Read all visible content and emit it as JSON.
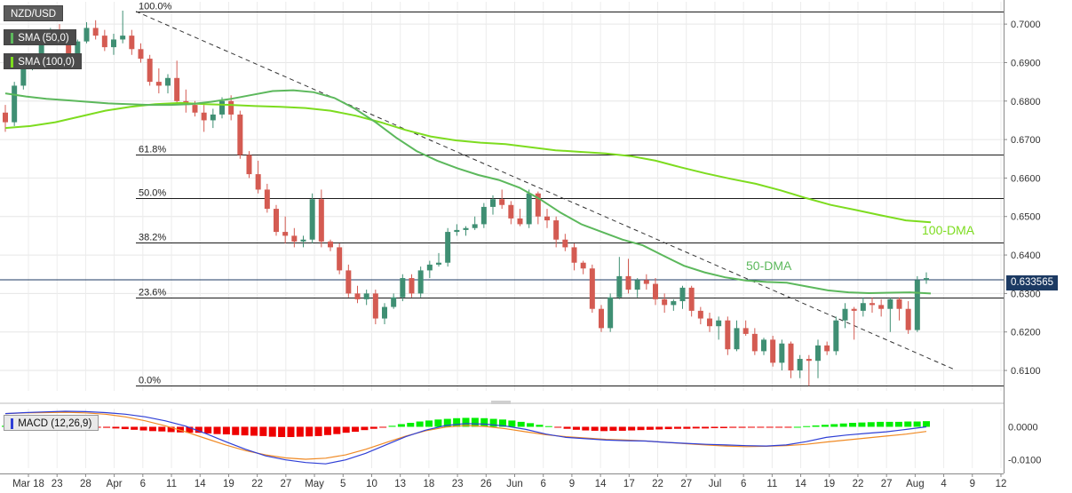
{
  "instrument": {
    "symbol": "NZD/USD"
  },
  "indicators": {
    "sma50": {
      "label": "SMA (50,0)",
      "color": "#5cb85c"
    },
    "sma100": {
      "label": "SMA (100,0)",
      "color": "#7ddc1f"
    },
    "macd": {
      "label": "MACD (12,26,9)",
      "macd_color": "#2f3fd6",
      "signal_color": "#f08a24"
    }
  },
  "last_price": "0.633565",
  "colors": {
    "up": "#3f8f73",
    "down": "#d45b52",
    "fib": "#1b1b1b",
    "hist_pos": "#00ee00",
    "hist_neg": "#ee0000",
    "price_line": "#1c3a63"
  },
  "chart_data": {
    "type": "candlestick",
    "x_axis_labels": [
      "Mar 18",
      "23",
      "28",
      "Apr",
      "6",
      "11",
      "14",
      "19",
      "22",
      "27",
      "May",
      "5",
      "10",
      "13",
      "18",
      "23",
      "26",
      "Jun",
      "6",
      "9",
      "14",
      "17",
      "22",
      "27",
      "Jul",
      "6",
      "11",
      "14",
      "19",
      "22",
      "27",
      "Aug",
      "4",
      "9",
      "12"
    ],
    "y_axis_labels": [
      "0.7000",
      "0.6900",
      "0.6800",
      "0.6700",
      "0.6600",
      "0.6500",
      "0.6400",
      "0.6300",
      "0.6200",
      "0.6100"
    ],
    "ylim": [
      0.6047,
      0.7058
    ],
    "fibonacci": [
      {
        "label": "100.0%",
        "value": 0.7033
      },
      {
        "label": "61.8%",
        "value": 0.6661
      },
      {
        "label": "50.0%",
        "value": 0.6547
      },
      {
        "label": "38.2%",
        "value": 0.6432
      },
      {
        "label": "23.6%",
        "value": 0.629
      },
      {
        "label": "0.0%",
        "value": 0.606
      }
    ],
    "trendline": {
      "from": 0.7033,
      "to": 0.6102,
      "style": "dashed"
    },
    "annotations": [
      {
        "text": "100-DMA",
        "color": "#7ddc1f"
      },
      {
        "text": "50-DMA",
        "color": "#5cb85c"
      }
    ],
    "ohlc": [
      [
        0.677,
        0.679,
        0.672,
        0.6745
      ],
      [
        0.6745,
        0.685,
        0.6735,
        0.684
      ],
      [
        0.684,
        0.6905,
        0.683,
        0.6895
      ],
      [
        0.6895,
        0.692,
        0.688,
        0.6905
      ],
      [
        0.6905,
        0.6975,
        0.6885,
        0.696
      ],
      [
        0.696,
        0.699,
        0.695,
        0.6975
      ],
      [
        0.6975,
        0.7,
        0.696,
        0.697
      ],
      [
        0.697,
        0.6985,
        0.69,
        0.6915
      ],
      [
        0.6915,
        0.696,
        0.6905,
        0.6955
      ],
      [
        0.6955,
        0.7005,
        0.695,
        0.699
      ],
      [
        0.699,
        0.701,
        0.696,
        0.697
      ],
      [
        0.697,
        0.6985,
        0.693,
        0.694
      ],
      [
        0.694,
        0.6975,
        0.692,
        0.696
      ],
      [
        0.696,
        0.7035,
        0.695,
        0.697
      ],
      [
        0.697,
        0.6985,
        0.692,
        0.6935
      ],
      [
        0.6935,
        0.695,
        0.69,
        0.691
      ],
      [
        0.691,
        0.692,
        0.684,
        0.685
      ],
      [
        0.685,
        0.6885,
        0.682,
        0.684
      ],
      [
        0.684,
        0.687,
        0.682,
        0.686
      ],
      [
        0.686,
        0.6905,
        0.679,
        0.68
      ],
      [
        0.68,
        0.683,
        0.677,
        0.679
      ],
      [
        0.679,
        0.68,
        0.676,
        0.677
      ],
      [
        0.677,
        0.679,
        0.672,
        0.675
      ],
      [
        0.675,
        0.678,
        0.673,
        0.6765
      ],
      [
        0.6765,
        0.681,
        0.6755,
        0.68
      ],
      [
        0.68,
        0.6815,
        0.675,
        0.6765
      ],
      [
        0.6765,
        0.6775,
        0.665,
        0.666
      ],
      [
        0.666,
        0.667,
        0.66,
        0.661
      ],
      [
        0.661,
        0.6645,
        0.656,
        0.657
      ],
      [
        0.657,
        0.6585,
        0.651,
        0.652
      ],
      [
        0.652,
        0.653,
        0.645,
        0.646
      ],
      [
        0.646,
        0.65,
        0.643,
        0.645
      ],
      [
        0.645,
        0.647,
        0.642,
        0.6435
      ],
      [
        0.6435,
        0.645,
        0.642,
        0.644
      ],
      [
        0.644,
        0.656,
        0.643,
        0.6545
      ],
      [
        0.6545,
        0.657,
        0.642,
        0.6435
      ],
      [
        0.6435,
        0.644,
        0.641,
        0.642
      ],
      [
        0.642,
        0.643,
        0.635,
        0.636
      ],
      [
        0.636,
        0.6375,
        0.629,
        0.63
      ],
      [
        0.63,
        0.632,
        0.6275,
        0.6285
      ],
      [
        0.6285,
        0.631,
        0.627,
        0.63
      ],
      [
        0.63,
        0.631,
        0.622,
        0.6235
      ],
      [
        0.6235,
        0.6275,
        0.622,
        0.6265
      ],
      [
        0.6265,
        0.63,
        0.626,
        0.629
      ],
      [
        0.629,
        0.635,
        0.628,
        0.634
      ],
      [
        0.634,
        0.635,
        0.629,
        0.63
      ],
      [
        0.63,
        0.637,
        0.629,
        0.636
      ],
      [
        0.636,
        0.6385,
        0.634,
        0.6375
      ],
      [
        0.6375,
        0.6405,
        0.637,
        0.638
      ],
      [
        0.638,
        0.647,
        0.637,
        0.646
      ],
      [
        0.646,
        0.648,
        0.645,
        0.6465
      ],
      [
        0.6465,
        0.6475,
        0.645,
        0.647
      ],
      [
        0.647,
        0.65,
        0.6465,
        0.648
      ],
      [
        0.648,
        0.6535,
        0.647,
        0.6525
      ],
      [
        0.6525,
        0.6555,
        0.6505,
        0.6545
      ],
      [
        0.6545,
        0.657,
        0.652,
        0.653
      ],
      [
        0.653,
        0.654,
        0.648,
        0.6495
      ],
      [
        0.6495,
        0.652,
        0.6475,
        0.648
      ],
      [
        0.648,
        0.657,
        0.647,
        0.656
      ],
      [
        0.656,
        0.6565,
        0.648,
        0.65
      ],
      [
        0.65,
        0.652,
        0.647,
        0.649
      ],
      [
        0.649,
        0.65,
        0.642,
        0.644
      ],
      [
        0.644,
        0.6455,
        0.641,
        0.642
      ],
      [
        0.642,
        0.643,
        0.636,
        0.638
      ],
      [
        0.638,
        0.6385,
        0.635,
        0.6365
      ],
      [
        0.6365,
        0.6375,
        0.625,
        0.626
      ],
      [
        0.626,
        0.627,
        0.62,
        0.621
      ],
      [
        0.621,
        0.63,
        0.62,
        0.629
      ],
      [
        0.629,
        0.6395,
        0.6285,
        0.6345
      ],
      [
        0.6345,
        0.639,
        0.63,
        0.631
      ],
      [
        0.631,
        0.634,
        0.629,
        0.6335
      ],
      [
        0.6335,
        0.635,
        0.631,
        0.6325
      ],
      [
        0.6325,
        0.634,
        0.627,
        0.6285
      ],
      [
        0.6285,
        0.63,
        0.625,
        0.627
      ],
      [
        0.627,
        0.6285,
        0.6255,
        0.628
      ],
      [
        0.628,
        0.632,
        0.626,
        0.6315
      ],
      [
        0.6315,
        0.632,
        0.624,
        0.6255
      ],
      [
        0.6255,
        0.6265,
        0.622,
        0.6235
      ],
      [
        0.6235,
        0.625,
        0.62,
        0.6215
      ],
      [
        0.6215,
        0.624,
        0.618,
        0.623
      ],
      [
        0.623,
        0.624,
        0.614,
        0.6155
      ],
      [
        0.6155,
        0.623,
        0.615,
        0.621
      ],
      [
        0.621,
        0.623,
        0.619,
        0.6195
      ],
      [
        0.6195,
        0.621,
        0.614,
        0.615
      ],
      [
        0.615,
        0.6185,
        0.614,
        0.618
      ],
      [
        0.618,
        0.619,
        0.611,
        0.612
      ],
      [
        0.612,
        0.618,
        0.61,
        0.617
      ],
      [
        0.617,
        0.6175,
        0.608,
        0.61
      ],
      [
        0.61,
        0.614,
        0.608,
        0.613
      ],
      [
        0.613,
        0.614,
        0.606,
        0.6125
      ],
      [
        0.6125,
        0.618,
        0.608,
        0.6165
      ],
      [
        0.6165,
        0.6175,
        0.614,
        0.615
      ],
      [
        0.615,
        0.624,
        0.614,
        0.623
      ],
      [
        0.623,
        0.6275,
        0.621,
        0.626
      ],
      [
        0.626,
        0.6265,
        0.618,
        0.6255
      ],
      [
        0.6255,
        0.629,
        0.624,
        0.6275
      ],
      [
        0.6275,
        0.629,
        0.625,
        0.627
      ],
      [
        0.627,
        0.6285,
        0.624,
        0.626
      ],
      [
        0.626,
        0.629,
        0.62,
        0.6285
      ],
      [
        0.6285,
        0.629,
        0.623,
        0.626
      ],
      [
        0.626,
        0.628,
        0.6195,
        0.6205
      ],
      [
        0.6205,
        0.6345,
        0.62,
        0.6335
      ],
      [
        0.6335,
        0.6355,
        0.6325,
        0.634
      ]
    ],
    "sma50": [
      0.682,
      0.6812,
      0.6806,
      0.6802,
      0.6798,
      0.6794,
      0.6792,
      0.679,
      0.679,
      0.6792,
      0.6798,
      0.6806,
      0.6816,
      0.6826,
      0.6828,
      0.6823,
      0.6808,
      0.678,
      0.6745,
      0.6705,
      0.667,
      0.6645,
      0.6625,
      0.6608,
      0.6595,
      0.6575,
      0.6545,
      0.651,
      0.648,
      0.646,
      0.644,
      0.6425,
      0.6398,
      0.6372,
      0.6355,
      0.6342,
      0.6334,
      0.633,
      0.6328,
      0.6318,
      0.6308,
      0.6303,
      0.6301,
      0.6302,
      0.6303,
      0.63
    ],
    "sma100": [
      0.673,
      0.6735,
      0.6745,
      0.676,
      0.6775,
      0.6785,
      0.6792,
      0.6795,
      0.6792,
      0.679,
      0.6787,
      0.6785,
      0.6782,
      0.6775,
      0.6762,
      0.6745,
      0.6725,
      0.6708,
      0.6698,
      0.6692,
      0.6688,
      0.668,
      0.6672,
      0.6668,
      0.6664,
      0.6657,
      0.6645,
      0.6628,
      0.6612,
      0.6598,
      0.6585,
      0.6568,
      0.6548,
      0.653,
      0.6517,
      0.6503,
      0.649,
      0.6485
    ],
    "macd_panel": {
      "ylim": [
        -0.0125,
        0.0055
      ],
      "y_axis_labels": [
        "0.0000",
        "-0.0100"
      ],
      "histogram": [
        0.0003,
        0.0005,
        0.0006,
        0.0007,
        0.0008,
        0.0006,
        0.0004,
        0.0002,
        0.0001,
        0.0,
        -0.0001,
        -0.0003,
        -0.0005,
        -0.0007,
        -0.0009,
        -0.0011,
        -0.0013,
        -0.0014,
        -0.0016,
        -0.0017,
        -0.0018,
        -0.0018,
        -0.002,
        -0.0022,
        -0.0023,
        -0.0025,
        -0.0026,
        -0.0027,
        -0.0028,
        -0.003,
        -0.0031,
        -0.0031,
        -0.003,
        -0.0029,
        -0.0028,
        -0.0025,
        -0.0022,
        -0.0018,
        -0.0015,
        -0.001,
        -0.0006,
        -0.0002,
        0.0003,
        0.0008,
        0.0012,
        0.0016,
        0.0019,
        0.0022,
        0.0024,
        0.0026,
        0.0027,
        0.0027,
        0.0026,
        0.0024,
        0.0022,
        0.0019,
        0.0015,
        0.0011,
        0.0006,
        0.0002,
        -0.0002,
        -0.0006,
        -0.0009,
        -0.0011,
        -0.0012,
        -0.0013,
        -0.0012,
        -0.0012,
        -0.0011,
        -0.001,
        -0.0009,
        -0.0008,
        -0.0007,
        -0.0006,
        -0.0006,
        -0.0005,
        -0.0005,
        -0.0004,
        -0.0004,
        -0.0003,
        -0.0003,
        -0.0002,
        -0.0002,
        -0.0002,
        -0.0001,
        -0.0001,
        0.0,
        0.0002,
        0.0004,
        0.0006,
        0.0008,
        0.001,
        0.0012,
        0.0013,
        0.0014,
        0.0015,
        0.0015,
        0.0015,
        0.0016,
        0.0016,
        0.0017
      ],
      "macd": [
        0.004,
        0.0043,
        0.0045,
        0.0047,
        0.0046,
        0.0043,
        0.0038,
        0.003,
        0.0018,
        0.0002,
        -0.002,
        -0.0045,
        -0.0068,
        -0.0088,
        -0.01,
        -0.0108,
        -0.0112,
        -0.01,
        -0.008,
        -0.0055,
        -0.003,
        -0.001,
        0.0004,
        0.001,
        0.0008,
        0.0002,
        -0.0008,
        -0.0022,
        -0.0032,
        -0.0036,
        -0.004,
        -0.0042,
        -0.0043,
        -0.0047,
        -0.005,
        -0.0053,
        -0.0055,
        -0.0057,
        -0.0058,
        -0.0055,
        -0.0045,
        -0.0032,
        -0.0025,
        -0.002,
        -0.0015,
        -0.0008,
        0.0
      ],
      "signal": [
        0.004,
        0.0042,
        0.0043,
        0.0044,
        0.0042,
        0.0038,
        0.003,
        0.0018,
        0.0003,
        -0.0015,
        -0.0035,
        -0.0055,
        -0.0072,
        -0.0085,
        -0.0094,
        -0.0098,
        -0.0095,
        -0.0085,
        -0.0068,
        -0.0048,
        -0.0028,
        -0.0012,
        -0.0001,
        0.0004,
        0.0001,
        -0.0006,
        -0.0015,
        -0.0024,
        -0.003,
        -0.0034,
        -0.0038,
        -0.004,
        -0.0043,
        -0.0047,
        -0.0051,
        -0.0055,
        -0.0058,
        -0.006,
        -0.0059,
        -0.0057,
        -0.0053,
        -0.0046,
        -0.004,
        -0.0034,
        -0.0028,
        -0.0022,
        -0.0014
      ]
    }
  }
}
